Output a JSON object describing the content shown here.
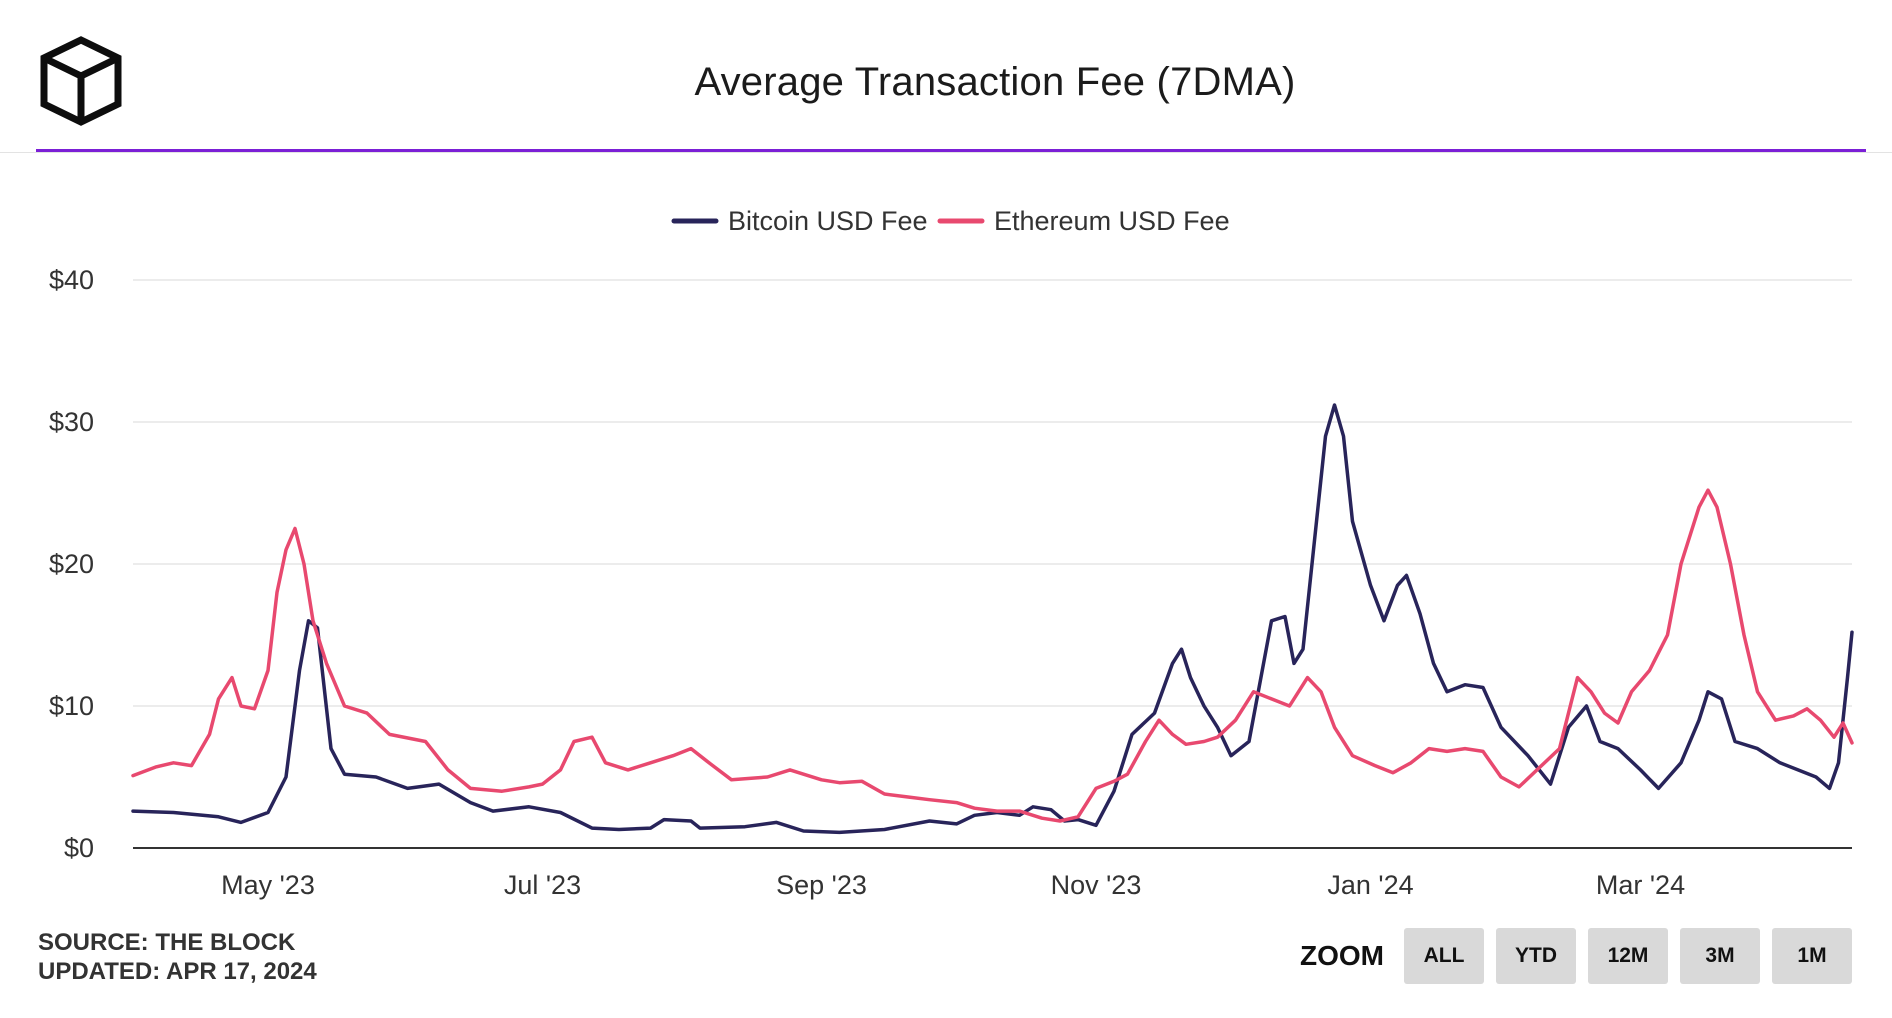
{
  "header": {
    "title": "Average Transaction Fee (7DMA)"
  },
  "footer": {
    "source": "SOURCE: THE BLOCK",
    "updated": "UPDATED: APR 17, 2024"
  },
  "zoom": {
    "label": "ZOOM",
    "buttons": [
      "ALL",
      "YTD",
      "12M",
      "3M",
      "1M"
    ]
  },
  "colors": {
    "accent": "#7b1fd6",
    "bitcoin": "#28245a",
    "ethereum": "#e8496f",
    "grid": "#e6e6e6",
    "axis": "#333333"
  },
  "chart_data": {
    "type": "line",
    "title": "Average Transaction Fee (7DMA)",
    "legend_position": "top-center",
    "grid": true,
    "xlim": [
      "2023-04-01",
      "2024-04-17"
    ],
    "ylim": [
      0,
      40
    ],
    "y_ticks": [
      {
        "value": 0,
        "label": "$0"
      },
      {
        "value": 10,
        "label": "$10"
      },
      {
        "value": 20,
        "label": "$20"
      },
      {
        "value": 30,
        "label": "$30"
      },
      {
        "value": 40,
        "label": "$40"
      }
    ],
    "x_ticks": [
      {
        "date": "2023-05-01",
        "label": "May '23"
      },
      {
        "date": "2023-07-01",
        "label": "Jul '23"
      },
      {
        "date": "2023-09-01",
        "label": "Sep '23"
      },
      {
        "date": "2023-11-01",
        "label": "Nov '23"
      },
      {
        "date": "2024-01-01",
        "label": "Jan '24"
      },
      {
        "date": "2024-03-01",
        "label": "Mar '24"
      }
    ],
    "series": [
      {
        "name": "Bitcoin USD Fee",
        "color": "#28245a",
        "points": [
          [
            "2023-04-01",
            2.6
          ],
          [
            "2023-04-10",
            2.5
          ],
          [
            "2023-04-20",
            2.2
          ],
          [
            "2023-04-25",
            1.8
          ],
          [
            "2023-05-01",
            2.5
          ],
          [
            "2023-05-05",
            5.0
          ],
          [
            "2023-05-08",
            12.5
          ],
          [
            "2023-05-10",
            16.0
          ],
          [
            "2023-05-12",
            15.5
          ],
          [
            "2023-05-15",
            7.0
          ],
          [
            "2023-05-18",
            5.2
          ],
          [
            "2023-05-25",
            5.0
          ],
          [
            "2023-06-01",
            4.2
          ],
          [
            "2023-06-08",
            4.5
          ],
          [
            "2023-06-15",
            3.2
          ],
          [
            "2023-06-20",
            2.6
          ],
          [
            "2023-06-28",
            2.9
          ],
          [
            "2023-07-05",
            2.5
          ],
          [
            "2023-07-12",
            1.4
          ],
          [
            "2023-07-18",
            1.3
          ],
          [
            "2023-07-25",
            1.4
          ],
          [
            "2023-07-28",
            2.0
          ],
          [
            "2023-08-03",
            1.9
          ],
          [
            "2023-08-05",
            1.4
          ],
          [
            "2023-08-15",
            1.5
          ],
          [
            "2023-08-22",
            1.8
          ],
          [
            "2023-08-28",
            1.2
          ],
          [
            "2023-09-05",
            1.1
          ],
          [
            "2023-09-15",
            1.3
          ],
          [
            "2023-09-25",
            1.9
          ],
          [
            "2023-10-01",
            1.7
          ],
          [
            "2023-10-05",
            2.3
          ],
          [
            "2023-10-10",
            2.5
          ],
          [
            "2023-10-15",
            2.3
          ],
          [
            "2023-10-18",
            2.9
          ],
          [
            "2023-10-22",
            2.7
          ],
          [
            "2023-10-25",
            1.9
          ],
          [
            "2023-10-28",
            2.0
          ],
          [
            "2023-11-01",
            1.6
          ],
          [
            "2023-11-05",
            4.0
          ],
          [
            "2023-11-09",
            8.0
          ],
          [
            "2023-11-14",
            9.5
          ],
          [
            "2023-11-18",
            13.0
          ],
          [
            "2023-11-20",
            14.0
          ],
          [
            "2023-11-22",
            12.0
          ],
          [
            "2023-11-25",
            10.0
          ],
          [
            "2023-11-28",
            8.5
          ],
          [
            "2023-12-01",
            6.5
          ],
          [
            "2023-12-05",
            7.5
          ],
          [
            "2023-12-10",
            16.0
          ],
          [
            "2023-12-13",
            16.3
          ],
          [
            "2023-12-15",
            13.0
          ],
          [
            "2023-12-17",
            14.0
          ],
          [
            "2023-12-20",
            23.0
          ],
          [
            "2023-12-22",
            29.0
          ],
          [
            "2023-12-24",
            31.2
          ],
          [
            "2023-12-26",
            29.0
          ],
          [
            "2023-12-28",
            23.0
          ],
          [
            "2024-01-01",
            18.5
          ],
          [
            "2024-01-04",
            16.0
          ],
          [
            "2024-01-07",
            18.5
          ],
          [
            "2024-01-09",
            19.2
          ],
          [
            "2024-01-12",
            16.5
          ],
          [
            "2024-01-15",
            13.0
          ],
          [
            "2024-01-18",
            11.0
          ],
          [
            "2024-01-22",
            11.5
          ],
          [
            "2024-01-26",
            11.3
          ],
          [
            "2024-01-30",
            8.5
          ],
          [
            "2024-02-05",
            6.5
          ],
          [
            "2024-02-10",
            4.5
          ],
          [
            "2024-02-14",
            8.5
          ],
          [
            "2024-02-18",
            10.0
          ],
          [
            "2024-02-21",
            7.5
          ],
          [
            "2024-02-25",
            7.0
          ],
          [
            "2024-03-01",
            5.5
          ],
          [
            "2024-03-05",
            4.2
          ],
          [
            "2024-03-10",
            6.0
          ],
          [
            "2024-03-14",
            9.0
          ],
          [
            "2024-03-16",
            11.0
          ],
          [
            "2024-03-19",
            10.5
          ],
          [
            "2024-03-22",
            7.5
          ],
          [
            "2024-03-27",
            7.0
          ],
          [
            "2024-04-01",
            6.0
          ],
          [
            "2024-04-05",
            5.5
          ],
          [
            "2024-04-09",
            5.0
          ],
          [
            "2024-04-12",
            4.2
          ],
          [
            "2024-04-14",
            6.0
          ],
          [
            "2024-04-16",
            12.0
          ],
          [
            "2024-04-17",
            15.2
          ]
        ]
      },
      {
        "name": "Ethereum USD Fee",
        "color": "#e8496f",
        "points": [
          [
            "2023-04-01",
            5.1
          ],
          [
            "2023-04-06",
            5.7
          ],
          [
            "2023-04-10",
            6.0
          ],
          [
            "2023-04-14",
            5.8
          ],
          [
            "2023-04-18",
            8.0
          ],
          [
            "2023-04-20",
            10.5
          ],
          [
            "2023-04-23",
            12.0
          ],
          [
            "2023-04-25",
            10.0
          ],
          [
            "2023-04-28",
            9.8
          ],
          [
            "2023-05-01",
            12.5
          ],
          [
            "2023-05-03",
            18.0
          ],
          [
            "2023-05-05",
            21.0
          ],
          [
            "2023-05-07",
            22.5
          ],
          [
            "2023-05-09",
            20.0
          ],
          [
            "2023-05-11",
            16.0
          ],
          [
            "2023-05-14",
            13.0
          ],
          [
            "2023-05-18",
            10.0
          ],
          [
            "2023-05-23",
            9.5
          ],
          [
            "2023-05-28",
            8.0
          ],
          [
            "2023-06-05",
            7.5
          ],
          [
            "2023-06-10",
            5.5
          ],
          [
            "2023-06-15",
            4.2
          ],
          [
            "2023-06-22",
            4.0
          ],
          [
            "2023-06-28",
            4.3
          ],
          [
            "2023-07-01",
            4.5
          ],
          [
            "2023-07-05",
            5.5
          ],
          [
            "2023-07-08",
            7.5
          ],
          [
            "2023-07-12",
            7.8
          ],
          [
            "2023-07-15",
            6.0
          ],
          [
            "2023-07-20",
            5.5
          ],
          [
            "2023-07-25",
            6.0
          ],
          [
            "2023-07-30",
            6.5
          ],
          [
            "2023-08-03",
            7.0
          ],
          [
            "2023-08-07",
            6.0
          ],
          [
            "2023-08-12",
            4.8
          ],
          [
            "2023-08-20",
            5.0
          ],
          [
            "2023-08-25",
            5.5
          ],
          [
            "2023-09-01",
            4.8
          ],
          [
            "2023-09-05",
            4.6
          ],
          [
            "2023-09-10",
            4.7
          ],
          [
            "2023-09-15",
            3.8
          ],
          [
            "2023-09-20",
            3.6
          ],
          [
            "2023-09-25",
            3.4
          ],
          [
            "2023-10-01",
            3.2
          ],
          [
            "2023-10-05",
            2.8
          ],
          [
            "2023-10-10",
            2.6
          ],
          [
            "2023-10-15",
            2.6
          ],
          [
            "2023-10-20",
            2.1
          ],
          [
            "2023-10-24",
            1.9
          ],
          [
            "2023-10-28",
            2.2
          ],
          [
            "2023-11-01",
            4.2
          ],
          [
            "2023-11-05",
            4.7
          ],
          [
            "2023-11-08",
            5.2
          ],
          [
            "2023-11-12",
            7.5
          ],
          [
            "2023-11-15",
            9.0
          ],
          [
            "2023-11-18",
            8.0
          ],
          [
            "2023-11-21",
            7.3
          ],
          [
            "2023-11-25",
            7.5
          ],
          [
            "2023-11-28",
            7.8
          ],
          [
            "2023-12-02",
            9.0
          ],
          [
            "2023-12-06",
            11.0
          ],
          [
            "2023-12-10",
            10.5
          ],
          [
            "2023-12-14",
            10.0
          ],
          [
            "2023-12-18",
            12.0
          ],
          [
            "2023-12-21",
            11.0
          ],
          [
            "2023-12-24",
            8.5
          ],
          [
            "2023-12-28",
            6.5
          ],
          [
            "2024-01-02",
            5.8
          ],
          [
            "2024-01-06",
            5.3
          ],
          [
            "2024-01-10",
            6.0
          ],
          [
            "2024-01-14",
            7.0
          ],
          [
            "2024-01-18",
            6.8
          ],
          [
            "2024-01-22",
            7.0
          ],
          [
            "2024-01-26",
            6.8
          ],
          [
            "2024-01-30",
            5.0
          ],
          [
            "2024-02-03",
            4.3
          ],
          [
            "2024-02-07",
            5.5
          ],
          [
            "2024-02-12",
            7.0
          ],
          [
            "2024-02-16",
            12.0
          ],
          [
            "2024-02-19",
            11.0
          ],
          [
            "2024-02-22",
            9.5
          ],
          [
            "2024-02-25",
            8.8
          ],
          [
            "2024-02-28",
            11.0
          ],
          [
            "2024-03-03",
            12.5
          ],
          [
            "2024-03-07",
            15.0
          ],
          [
            "2024-03-10",
            20.0
          ],
          [
            "2024-03-14",
            24.0
          ],
          [
            "2024-03-16",
            25.2
          ],
          [
            "2024-03-18",
            24.0
          ],
          [
            "2024-03-21",
            20.0
          ],
          [
            "2024-03-24",
            15.0
          ],
          [
            "2024-03-27",
            11.0
          ],
          [
            "2024-03-31",
            9.0
          ],
          [
            "2024-04-04",
            9.3
          ],
          [
            "2024-04-07",
            9.8
          ],
          [
            "2024-04-10",
            9.0
          ],
          [
            "2024-04-13",
            7.8
          ],
          [
            "2024-04-15",
            8.8
          ],
          [
            "2024-04-17",
            7.4
          ]
        ]
      }
    ]
  }
}
